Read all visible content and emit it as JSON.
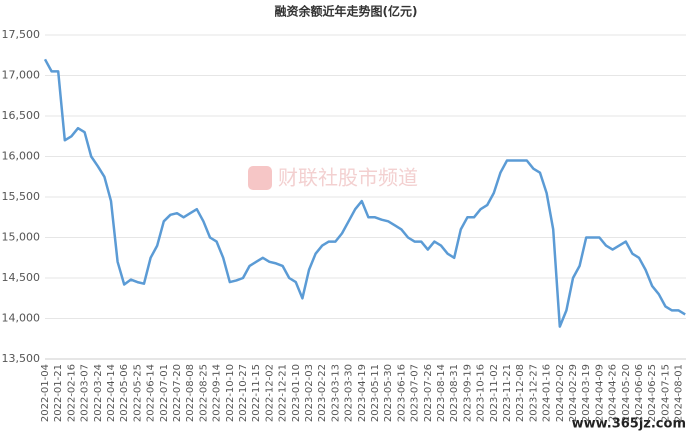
{
  "chart_data": {
    "type": "line",
    "title": "融资余额近年走势图(亿元)",
    "watermark": "财联社股市频道",
    "site_mark": "www.365jz.com",
    "color": "#5b9bd5",
    "grid": true,
    "ylim": [
      13500,
      17500
    ],
    "yticks": [
      {
        "value": 13500,
        "label": "13,500"
      },
      {
        "value": 14000,
        "label": "14,000"
      },
      {
        "value": 14500,
        "label": "14,500"
      },
      {
        "value": 15000,
        "label": "15,000"
      },
      {
        "value": 15500,
        "label": "15,500"
      },
      {
        "value": 16000,
        "label": "16,000"
      },
      {
        "value": 16500,
        "label": "16,500"
      },
      {
        "value": 17000,
        "label": "17,000"
      },
      {
        "value": 17500,
        "label": "17,500"
      }
    ],
    "categories": [
      "2022-01-04",
      null,
      "2022-01-21",
      null,
      "2022-02-16",
      null,
      "2022-03-07",
      null,
      "2022-03-24",
      null,
      "2022-04-14",
      null,
      "2022-05-06",
      null,
      "2022-05-25",
      null,
      "2022-06-14",
      null,
      "2022-07-01",
      null,
      "2022-07-20",
      null,
      "2022-08-08",
      null,
      "2022-08-25",
      null,
      "2022-09-14",
      null,
      "2022-10-10",
      null,
      "2022-10-27",
      null,
      "2022-11-15",
      null,
      "2022-12-02",
      null,
      "2022-12-21",
      null,
      "2023-01-10",
      null,
      "2023-02-03",
      null,
      "2023-02-22",
      null,
      "2023-03-13",
      null,
      "2023-03-30",
      null,
      "2023-04-19",
      null,
      "2023-05-11",
      null,
      "2023-05-30",
      null,
      "2023-06-16",
      null,
      "2023-07-07",
      null,
      "2023-07-26",
      null,
      "2023-08-14",
      null,
      "2023-08-31",
      null,
      "2023-09-19",
      null,
      "2023-10-16",
      null,
      "2023-11-02",
      null,
      "2023-11-21",
      null,
      "2023-12-08",
      null,
      "2023-12-27",
      null,
      "2024-01-16",
      null,
      "2024-02-02",
      null,
      "2024-02-29",
      null,
      "2024-03-19",
      null,
      "2024-04-09",
      null,
      "2024-04-26",
      null,
      "2024-05-20",
      null,
      "2024-06-06",
      null,
      "2024-06-25",
      null,
      "2024-07-15",
      null,
      "2024-08-01",
      null
    ],
    "values": [
      17200,
      17050,
      17050,
      16200,
      16250,
      16350,
      16300,
      16000,
      15880,
      15750,
      15450,
      14700,
      14420,
      14480,
      14450,
      14430,
      14750,
      14900,
      15200,
      15280,
      15300,
      15250,
      15300,
      15350,
      15200,
      15000,
      14950,
      14750,
      14450,
      14470,
      14500,
      14650,
      14700,
      14750,
      14700,
      14680,
      14650,
      14500,
      14450,
      14250,
      14600,
      14800,
      14900,
      14950,
      14950,
      15050,
      15200,
      15350,
      15450,
      15250,
      15250,
      15220,
      15200,
      15150,
      15100,
      15000,
      14950,
      14950,
      14850,
      14950,
      14900,
      14800,
      14750,
      15100,
      15250,
      15250,
      15350,
      15400,
      15550,
      15800,
      15950,
      15950,
      15950,
      15950,
      15850,
      15800,
      15550,
      15100,
      13900,
      14100,
      14500,
      14650,
      15000,
      15000,
      15000,
      14900,
      14850,
      14900,
      14950,
      14800,
      14750,
      14600,
      14400,
      14300,
      14150,
      14100,
      14100,
      14050
    ]
  }
}
